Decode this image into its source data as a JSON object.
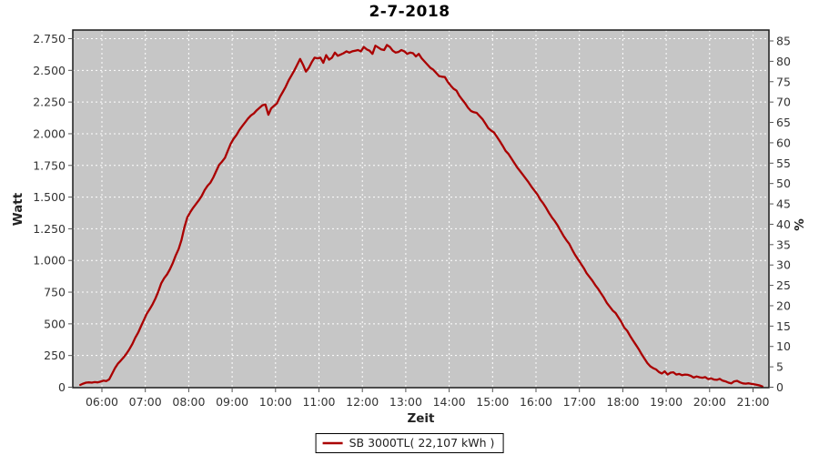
{
  "title": "2-7-2018",
  "axes": {
    "x": {
      "label": "Zeit"
    },
    "y_left": {
      "label": "Watt"
    },
    "y_right": {
      "label": "%"
    }
  },
  "legend": {
    "label": "SB 3000TL( 22,107 kWh )"
  },
  "colors": {
    "series": "#aa0000",
    "plot_bg": "#c6c6c6",
    "grid": "#ffffff",
    "border": "#1a1a1a",
    "tick_text": "#333333",
    "tick_mark": "#555555",
    "background": "#ffffff"
  },
  "chart_data": {
    "type": "line",
    "title": "2-7-2018",
    "xlabel": "Zeit",
    "ylabel_left": "Watt",
    "ylabel_right": "%",
    "grid": true,
    "legend_position": "bottom-center",
    "ylim_watt": [
      0,
      2815
    ],
    "x_range": [
      "05:20",
      "21:22"
    ],
    "x_ticks": [
      {
        "m": 360,
        "label": "06:00"
      },
      {
        "m": 420,
        "label": "07:00"
      },
      {
        "m": 480,
        "label": "08:00"
      },
      {
        "m": 540,
        "label": "09:00"
      },
      {
        "m": 600,
        "label": "10:00"
      },
      {
        "m": 660,
        "label": "11:00"
      },
      {
        "m": 720,
        "label": "12:00"
      },
      {
        "m": 780,
        "label": "13:00"
      },
      {
        "m": 840,
        "label": "14:00"
      },
      {
        "m": 900,
        "label": "15:00"
      },
      {
        "m": 960,
        "label": "16:00"
      },
      {
        "m": 1020,
        "label": "17:00"
      },
      {
        "m": 1080,
        "label": "18:00"
      },
      {
        "m": 1140,
        "label": "19:00"
      },
      {
        "m": 1200,
        "label": "20:00"
      },
      {
        "m": 1260,
        "label": "21:00"
      }
    ],
    "left_ticks": [
      {
        "v": 0,
        "label": "0"
      },
      {
        "v": 250,
        "label": "250"
      },
      {
        "v": 500,
        "label": "500"
      },
      {
        "v": 750,
        "label": "750"
      },
      {
        "v": 1000,
        "label": "1.000"
      },
      {
        "v": 1250,
        "label": "1.250"
      },
      {
        "v": 1500,
        "label": "1.500"
      },
      {
        "v": 1750,
        "label": "1.750"
      },
      {
        "v": 2000,
        "label": "2.000"
      },
      {
        "v": 2250,
        "label": "2.250"
      },
      {
        "v": 2500,
        "label": "2.500"
      },
      {
        "v": 2750,
        "label": "2.750"
      }
    ],
    "right_ticks": [
      0,
      5,
      10,
      15,
      20,
      25,
      30,
      35,
      40,
      45,
      50,
      55,
      60,
      65,
      70,
      75,
      80,
      85
    ],
    "right_axis_note": "percent scale, 85% aligns near 2750 W",
    "series": [
      {
        "name": "SB 3000TL( 22,107 kWh )",
        "color": "#aa0000",
        "points_min_watt": [
          [
            330,
            18
          ],
          [
            334,
            28
          ],
          [
            338,
            36
          ],
          [
            342,
            38
          ],
          [
            346,
            36
          ],
          [
            350,
            40
          ],
          [
            354,
            38
          ],
          [
            358,
            44
          ],
          [
            362,
            52
          ],
          [
            366,
            48
          ],
          [
            370,
            62
          ],
          [
            374,
            105
          ],
          [
            378,
            150
          ],
          [
            382,
            185
          ],
          [
            386,
            210
          ],
          [
            390,
            235
          ],
          [
            394,
            265
          ],
          [
            398,
            300
          ],
          [
            402,
            340
          ],
          [
            406,
            390
          ],
          [
            410,
            430
          ],
          [
            414,
            480
          ],
          [
            418,
            530
          ],
          [
            422,
            580
          ],
          [
            426,
            615
          ],
          [
            430,
            655
          ],
          [
            434,
            700
          ],
          [
            438,
            755
          ],
          [
            442,
            820
          ],
          [
            446,
            860
          ],
          [
            450,
            890
          ],
          [
            454,
            930
          ],
          [
            458,
            980
          ],
          [
            462,
            1040
          ],
          [
            466,
            1090
          ],
          [
            470,
            1160
          ],
          [
            474,
            1260
          ],
          [
            478,
            1340
          ],
          [
            482,
            1380
          ],
          [
            486,
            1415
          ],
          [
            490,
            1445
          ],
          [
            494,
            1475
          ],
          [
            498,
            1510
          ],
          [
            502,
            1555
          ],
          [
            506,
            1590
          ],
          [
            510,
            1615
          ],
          [
            514,
            1655
          ],
          [
            518,
            1705
          ],
          [
            522,
            1755
          ],
          [
            526,
            1780
          ],
          [
            530,
            1810
          ],
          [
            534,
            1865
          ],
          [
            538,
            1920
          ],
          [
            542,
            1960
          ],
          [
            546,
            1990
          ],
          [
            550,
            2030
          ],
          [
            554,
            2060
          ],
          [
            558,
            2090
          ],
          [
            562,
            2120
          ],
          [
            566,
            2145
          ],
          [
            570,
            2160
          ],
          [
            574,
            2185
          ],
          [
            578,
            2205
          ],
          [
            582,
            2225
          ],
          [
            586,
            2230
          ],
          [
            590,
            2150
          ],
          [
            594,
            2200
          ],
          [
            598,
            2220
          ],
          [
            602,
            2240
          ],
          [
            606,
            2290
          ],
          [
            610,
            2330
          ],
          [
            614,
            2370
          ],
          [
            618,
            2420
          ],
          [
            622,
            2460
          ],
          [
            626,
            2500
          ],
          [
            630,
            2545
          ],
          [
            634,
            2590
          ],
          [
            638,
            2545
          ],
          [
            642,
            2490
          ],
          [
            646,
            2520
          ],
          [
            650,
            2565
          ],
          [
            654,
            2600
          ],
          [
            658,
            2595
          ],
          [
            662,
            2600
          ],
          [
            666,
            2560
          ],
          [
            670,
            2620
          ],
          [
            674,
            2585
          ],
          [
            678,
            2600
          ],
          [
            682,
            2640
          ],
          [
            686,
            2615
          ],
          [
            690,
            2625
          ],
          [
            694,
            2635
          ],
          [
            698,
            2650
          ],
          [
            702,
            2640
          ],
          [
            706,
            2650
          ],
          [
            710,
            2655
          ],
          [
            714,
            2660
          ],
          [
            718,
            2650
          ],
          [
            722,
            2685
          ],
          [
            726,
            2665
          ],
          [
            730,
            2655
          ],
          [
            734,
            2630
          ],
          [
            738,
            2695
          ],
          [
            742,
            2680
          ],
          [
            746,
            2665
          ],
          [
            750,
            2660
          ],
          [
            754,
            2700
          ],
          [
            758,
            2685
          ],
          [
            762,
            2655
          ],
          [
            766,
            2640
          ],
          [
            770,
            2645
          ],
          [
            774,
            2660
          ],
          [
            778,
            2650
          ],
          [
            782,
            2630
          ],
          [
            786,
            2640
          ],
          [
            790,
            2635
          ],
          [
            794,
            2610
          ],
          [
            798,
            2630
          ],
          [
            802,
            2595
          ],
          [
            806,
            2570
          ],
          [
            810,
            2545
          ],
          [
            814,
            2520
          ],
          [
            818,
            2505
          ],
          [
            822,
            2480
          ],
          [
            826,
            2455
          ],
          [
            830,
            2450
          ],
          [
            834,
            2448
          ],
          [
            838,
            2410
          ],
          [
            842,
            2380
          ],
          [
            846,
            2355
          ],
          [
            850,
            2340
          ],
          [
            854,
            2300
          ],
          [
            858,
            2270
          ],
          [
            862,
            2240
          ],
          [
            866,
            2205
          ],
          [
            870,
            2180
          ],
          [
            874,
            2170
          ],
          [
            878,
            2165
          ],
          [
            882,
            2140
          ],
          [
            886,
            2115
          ],
          [
            890,
            2080
          ],
          [
            894,
            2045
          ],
          [
            898,
            2025
          ],
          [
            902,
            2010
          ],
          [
            906,
            1975
          ],
          [
            910,
            1940
          ],
          [
            914,
            1905
          ],
          [
            918,
            1865
          ],
          [
            922,
            1840
          ],
          [
            926,
            1805
          ],
          [
            930,
            1770
          ],
          [
            934,
            1735
          ],
          [
            938,
            1705
          ],
          [
            942,
            1675
          ],
          [
            946,
            1645
          ],
          [
            950,
            1615
          ],
          [
            954,
            1580
          ],
          [
            958,
            1550
          ],
          [
            962,
            1520
          ],
          [
            966,
            1480
          ],
          [
            970,
            1450
          ],
          [
            974,
            1415
          ],
          [
            978,
            1375
          ],
          [
            982,
            1340
          ],
          [
            986,
            1310
          ],
          [
            990,
            1275
          ],
          [
            994,
            1235
          ],
          [
            998,
            1195
          ],
          [
            1002,
            1160
          ],
          [
            1006,
            1130
          ],
          [
            1010,
            1085
          ],
          [
            1014,
            1045
          ],
          [
            1018,
            1010
          ],
          [
            1022,
            975
          ],
          [
            1026,
            940
          ],
          [
            1030,
            900
          ],
          [
            1034,
            870
          ],
          [
            1038,
            840
          ],
          [
            1042,
            805
          ],
          [
            1046,
            775
          ],
          [
            1050,
            740
          ],
          [
            1054,
            705
          ],
          [
            1058,
            665
          ],
          [
            1062,
            635
          ],
          [
            1066,
            605
          ],
          [
            1070,
            585
          ],
          [
            1074,
            550
          ],
          [
            1078,
            515
          ],
          [
            1082,
            470
          ],
          [
            1086,
            445
          ],
          [
            1090,
            405
          ],
          [
            1094,
            370
          ],
          [
            1098,
            335
          ],
          [
            1102,
            300
          ],
          [
            1106,
            260
          ],
          [
            1110,
            225
          ],
          [
            1114,
            190
          ],
          [
            1118,
            165
          ],
          [
            1122,
            150
          ],
          [
            1126,
            140
          ],
          [
            1130,
            120
          ],
          [
            1134,
            108
          ],
          [
            1138,
            125
          ],
          [
            1142,
            100
          ],
          [
            1146,
            115
          ],
          [
            1150,
            118
          ],
          [
            1154,
            100
          ],
          [
            1158,
            105
          ],
          [
            1162,
            95
          ],
          [
            1166,
            100
          ],
          [
            1170,
            98
          ],
          [
            1174,
            90
          ],
          [
            1178,
            76
          ],
          [
            1182,
            85
          ],
          [
            1186,
            78
          ],
          [
            1190,
            75
          ],
          [
            1194,
            80
          ],
          [
            1198,
            64
          ],
          [
            1202,
            70
          ],
          [
            1206,
            60
          ],
          [
            1210,
            58
          ],
          [
            1214,
            66
          ],
          [
            1218,
            52
          ],
          [
            1222,
            46
          ],
          [
            1226,
            36
          ],
          [
            1230,
            30
          ],
          [
            1234,
            46
          ],
          [
            1238,
            50
          ],
          [
            1242,
            38
          ],
          [
            1246,
            30
          ],
          [
            1250,
            28
          ],
          [
            1254,
            31
          ],
          [
            1258,
            26
          ],
          [
            1262,
            22
          ],
          [
            1266,
            18
          ],
          [
            1270,
            12
          ],
          [
            1273,
            6
          ]
        ]
      }
    ]
  }
}
